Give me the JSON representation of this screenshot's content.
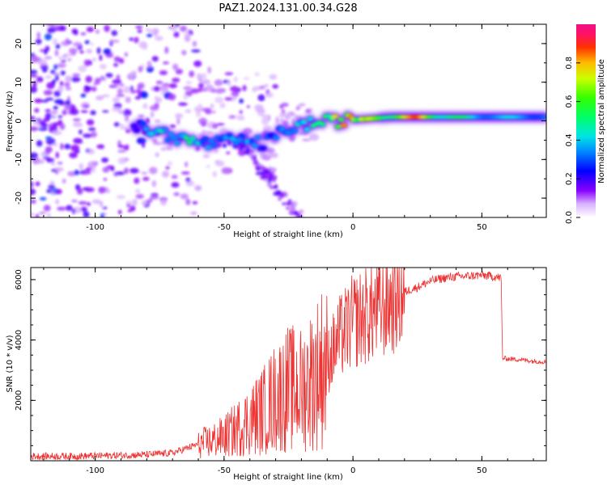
{
  "title": "PAZ1.2024.131.00.34.G28",
  "chart_data": [
    {
      "type": "heatmap",
      "xlabel": "Height of straight line (km)",
      "ylabel": "Frequency (Hz)",
      "xlim": [
        -125,
        75
      ],
      "ylim": [
        -25,
        25
      ],
      "xticks": [
        -100,
        -50,
        0,
        50
      ],
      "yticks": [
        -20,
        -10,
        0,
        10,
        20
      ],
      "colorbar": {
        "label": "Normalized spectral amplitude",
        "range": [
          0.0,
          1.0
        ],
        "ticks": [
          0.0,
          0.2,
          0.4,
          0.6,
          0.8
        ],
        "colormap": "gist_ncar-like (white-violet-blue-cyan-green-yellow-orange-red-magenta)"
      },
      "ridge": {
        "x": [
          -85,
          -75,
          -65,
          -55,
          -45,
          -35,
          -25,
          -15,
          -5,
          5,
          15,
          25,
          35,
          50,
          75
        ],
        "freq": [
          -1.5,
          -3,
          -5,
          -6,
          -5,
          -6,
          -2,
          -0.5,
          0,
          0.5,
          1,
          1,
          1,
          1,
          1
        ],
        "amplitude": [
          0.25,
          0.45,
          0.45,
          0.35,
          0.4,
          0.3,
          0.35,
          0.5,
          0.75,
          0.7,
          0.7,
          0.9,
          0.6,
          0.45,
          0.4
        ]
      }
    },
    {
      "type": "line",
      "xlabel": "Height of straight line (km)",
      "ylabel": "SNR (10 * v/v)",
      "xlim": [
        -125,
        75
      ],
      "ylim": [
        0,
        6400
      ],
      "xticks": [
        -100,
        -50,
        0,
        50
      ],
      "yticks": [
        2000,
        4000,
        6000
      ],
      "color": "#ee3333",
      "x": [
        -125,
        -110,
        -100,
        -90,
        -80,
        -70,
        -65,
        -60,
        -55,
        -50,
        -45,
        -40,
        -35,
        -30,
        -25,
        -20,
        -15,
        -10,
        -5,
        0,
        5,
        10,
        15,
        20,
        25,
        30,
        35,
        40,
        45,
        50,
        55,
        57.5,
        58,
        60,
        65,
        70,
        75
      ],
      "y": [
        150,
        150,
        160,
        180,
        200,
        260,
        400,
        550,
        650,
        800,
        1050,
        1350,
        1650,
        2100,
        2400,
        2350,
        2800,
        3300,
        4100,
        4600,
        4800,
        5000,
        5300,
        5600,
        5750,
        5950,
        6050,
        6100,
        6120,
        6150,
        6100,
        6050,
        3400,
        3380,
        3350,
        3300,
        3280
      ]
    }
  ]
}
